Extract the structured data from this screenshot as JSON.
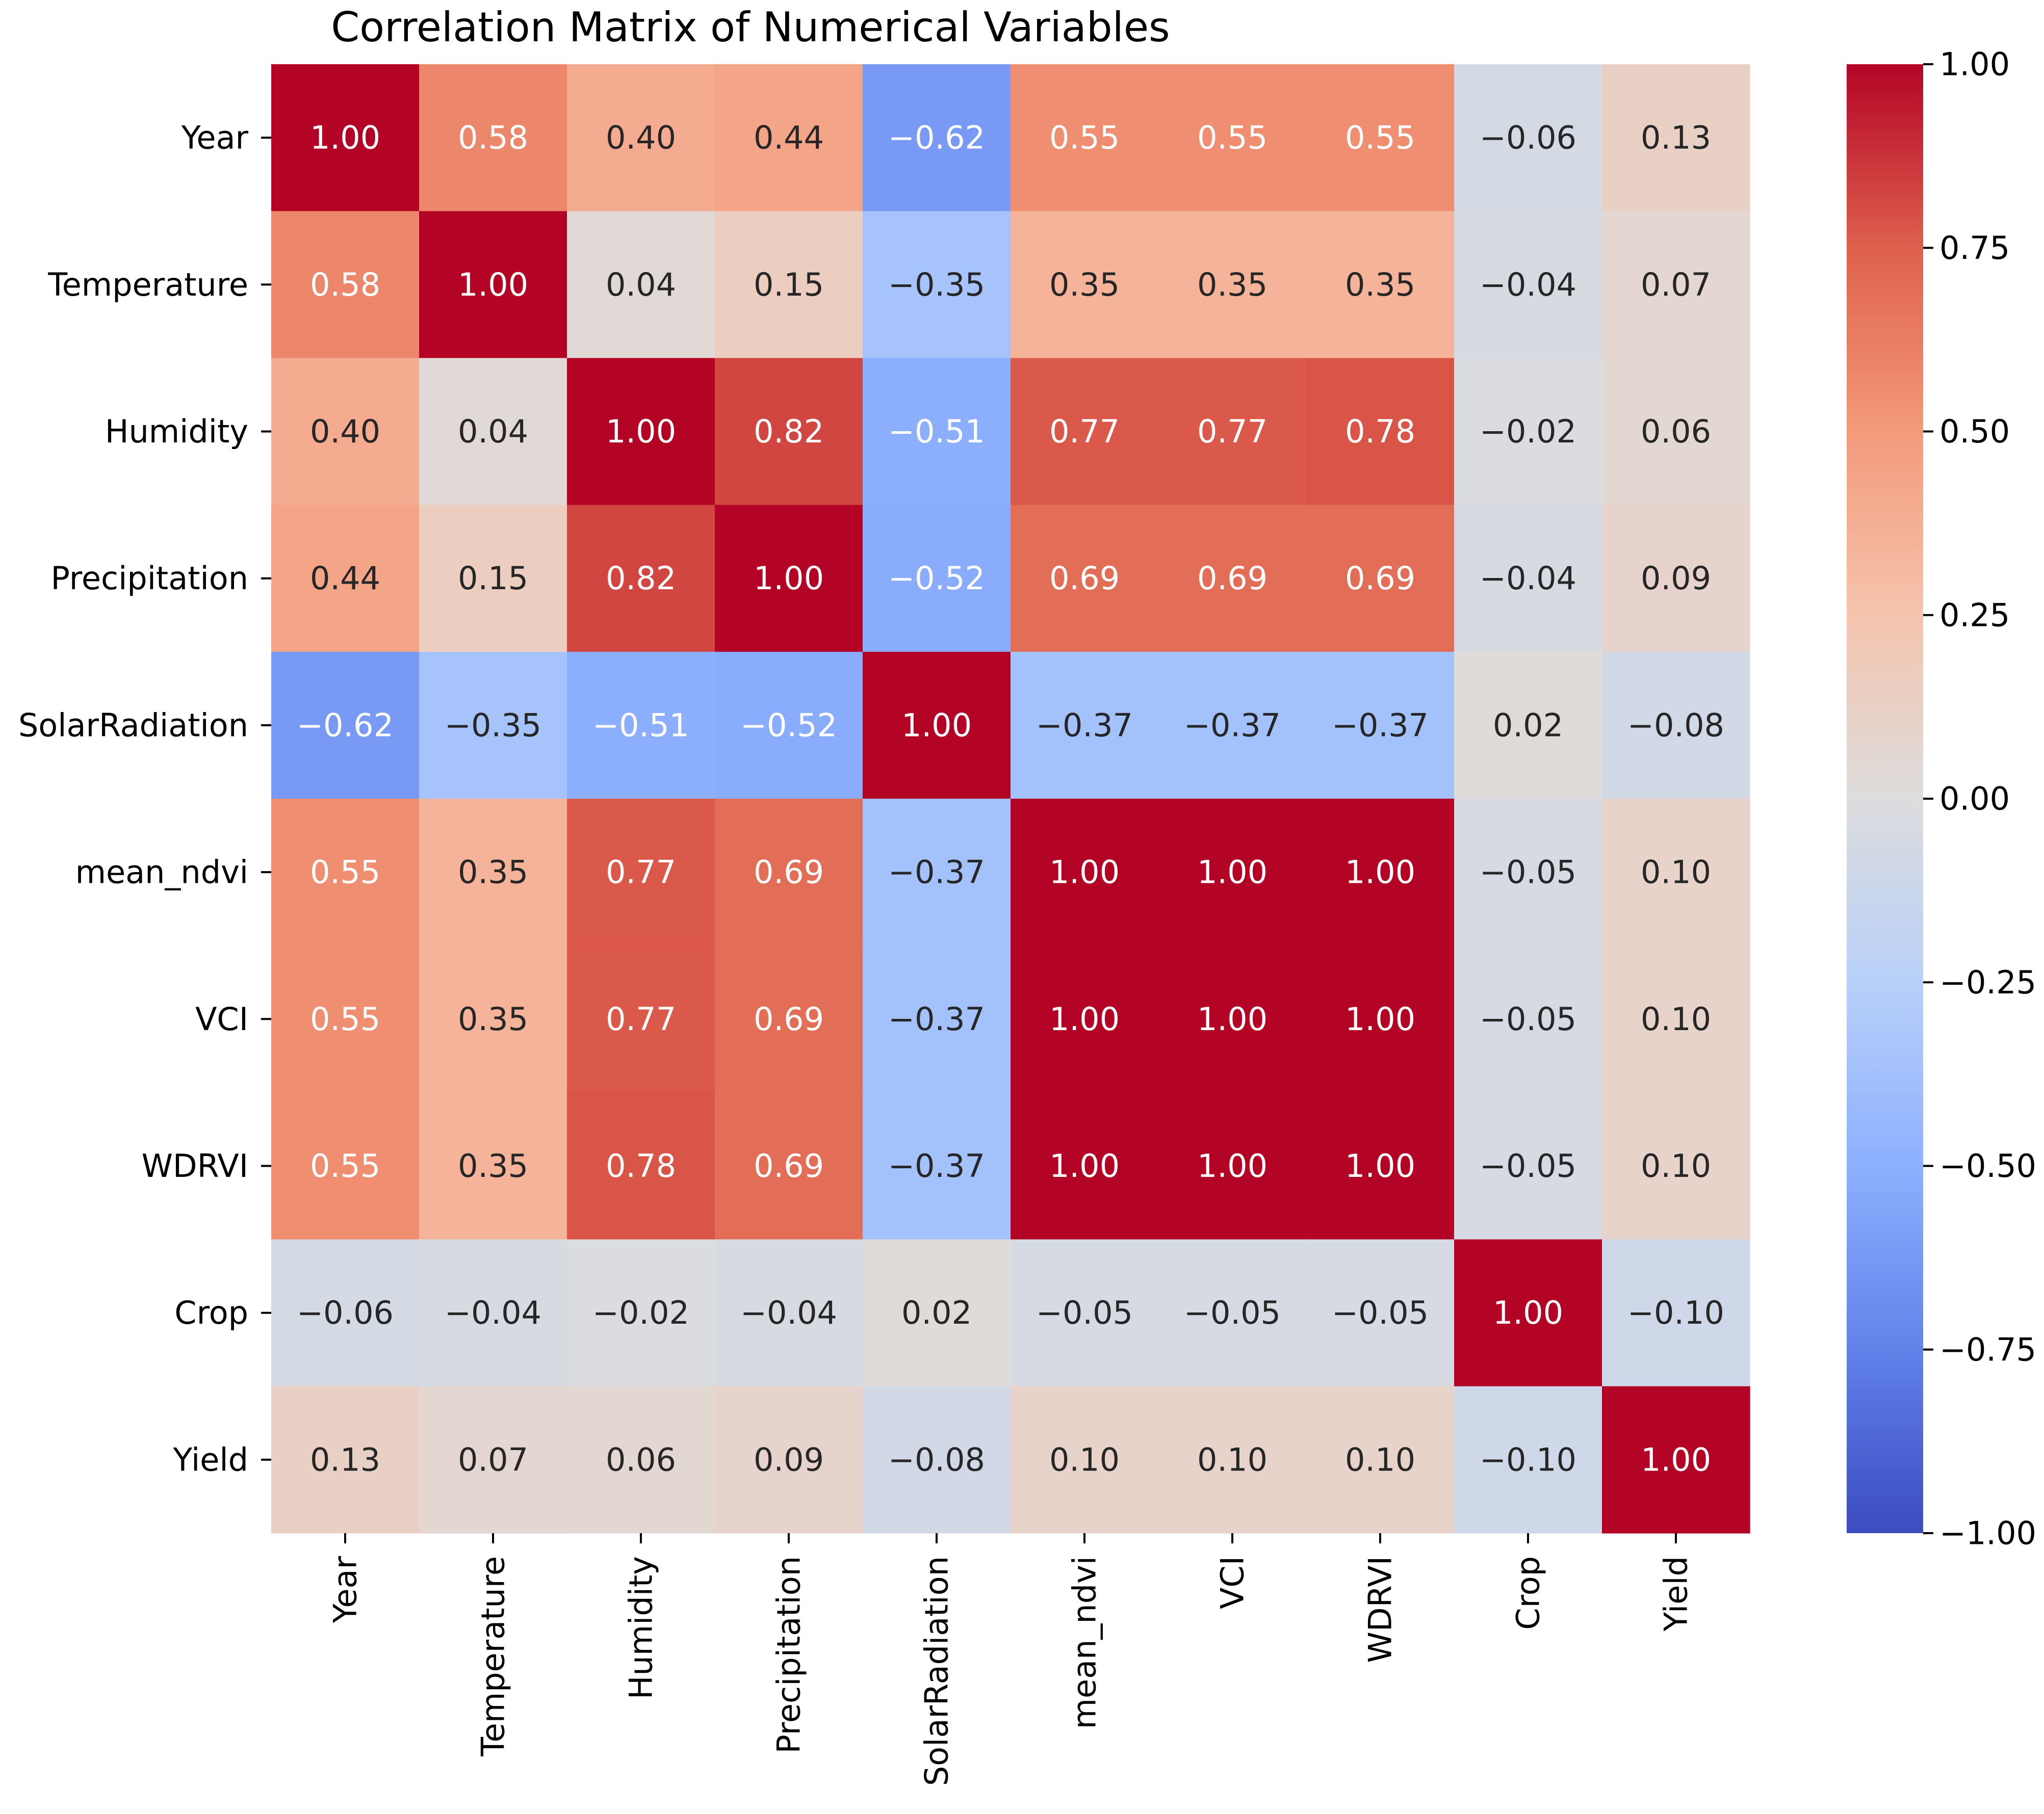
{
  "chart_data": {
    "type": "heatmap",
    "title": "Correlation Matrix of Numerical Variables",
    "xlabel": "",
    "ylabel": "",
    "labels": [
      "Year",
      "Temperature",
      "Humidity",
      "Precipitation",
      "SolarRadiation",
      "mean_ndvi",
      "VCI",
      "WDRVI",
      "Crop",
      "Yield"
    ],
    "matrix": [
      [
        1.0,
        0.58,
        0.4,
        0.44,
        -0.62,
        0.55,
        0.55,
        0.55,
        -0.06,
        0.13
      ],
      [
        0.58,
        1.0,
        0.04,
        0.15,
        -0.35,
        0.35,
        0.35,
        0.35,
        -0.04,
        0.07
      ],
      [
        0.4,
        0.04,
        1.0,
        0.82,
        -0.51,
        0.77,
        0.77,
        0.78,
        -0.02,
        0.06
      ],
      [
        0.44,
        0.15,
        0.82,
        1.0,
        -0.52,
        0.69,
        0.69,
        0.69,
        -0.04,
        0.09
      ],
      [
        -0.62,
        -0.35,
        -0.51,
        -0.52,
        1.0,
        -0.37,
        -0.37,
        -0.37,
        0.02,
        -0.08
      ],
      [
        0.55,
        0.35,
        0.77,
        0.69,
        -0.37,
        1.0,
        1.0,
        1.0,
        -0.05,
        0.1
      ],
      [
        0.55,
        0.35,
        0.77,
        0.69,
        -0.37,
        1.0,
        1.0,
        1.0,
        -0.05,
        0.1
      ],
      [
        0.55,
        0.35,
        0.78,
        0.69,
        -0.37,
        1.0,
        1.0,
        1.0,
        -0.05,
        0.1
      ],
      [
        -0.06,
        -0.04,
        -0.02,
        -0.04,
        0.02,
        -0.05,
        -0.05,
        -0.05,
        1.0,
        -0.1
      ],
      [
        0.13,
        0.07,
        0.06,
        0.09,
        -0.08,
        0.1,
        0.1,
        0.1,
        -0.1,
        1.0
      ]
    ],
    "value_format": "2 decimals",
    "colormap": "coolwarm",
    "colorbar": {
      "range": [
        -1.0,
        1.0
      ],
      "ticks": [
        "1.00",
        "0.75",
        "0.50",
        "0.25",
        "0.00",
        "−0.25",
        "−0.50",
        "−0.75",
        "−1.00"
      ],
      "position": "right"
    },
    "grid": false,
    "legend": "none"
  }
}
